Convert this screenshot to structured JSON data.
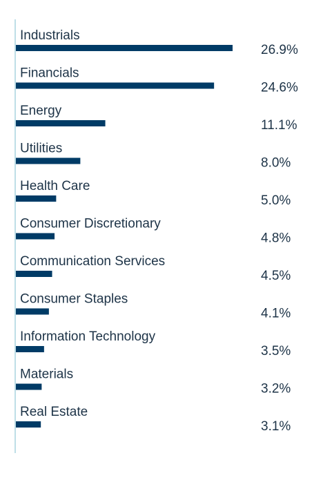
{
  "colors": {
    "bar": "#003b66",
    "axis_line": "#a9d3df",
    "text": "#1d3347"
  },
  "chart_data": {
    "type": "bar",
    "orientation": "horizontal",
    "title": "",
    "xlabel": "",
    "ylabel": "",
    "grid": false,
    "legend": "none",
    "value_suffix": "%",
    "xlim": [
      0,
      26.9
    ],
    "categories": [
      "Industrials",
      "Financials",
      "Energy",
      "Utilities",
      "Health Care",
      "Consumer Discretionary",
      "Communication Services",
      "Consumer Staples",
      "Information Technology",
      "Materials",
      "Real Estate"
    ],
    "values": [
      26.9,
      24.6,
      11.1,
      8.0,
      5.0,
      4.8,
      4.5,
      4.1,
      3.5,
      3.2,
      3.1
    ],
    "value_labels": [
      "26.9%",
      "24.6%",
      "11.1%",
      "8.0%",
      "5.0%",
      "4.8%",
      "4.5%",
      "4.1%",
      "3.5%",
      "3.2%",
      "3.1%"
    ]
  }
}
